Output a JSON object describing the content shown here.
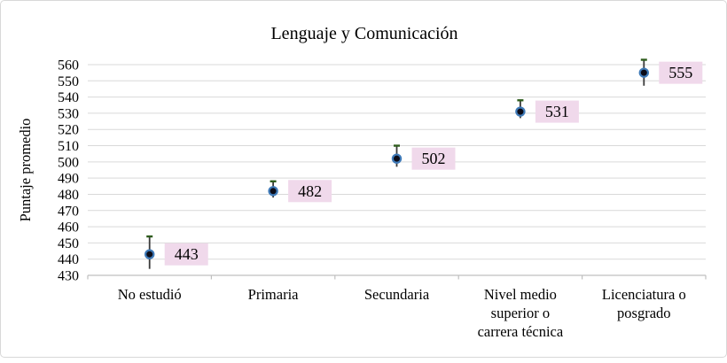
{
  "chart_data": {
    "type": "scatter",
    "title": "Lenguaje y Comunicación",
    "xlabel": "",
    "ylabel": "Puntaje promedio",
    "categories": [
      "No estudió",
      "Primaria",
      "Secundaria",
      "Nivel medio superior o carrera técnica",
      "Licenciatura o posgrado"
    ],
    "values": [
      443,
      482,
      502,
      531,
      555
    ],
    "data_labels": [
      "443",
      "482",
      "502",
      "531",
      "555"
    ],
    "error_low": [
      434,
      478,
      497,
      527,
      547
    ],
    "error_high": [
      454,
      488,
      510,
      538,
      563
    ],
    "ylim": [
      430,
      560
    ],
    "yticks": [
      430,
      440,
      450,
      460,
      470,
      480,
      490,
      500,
      510,
      520,
      530,
      540,
      550,
      560
    ],
    "grid": true,
    "legend": false
  },
  "style": {
    "grid_color": "#d9d9d9",
    "axis_color": "#bfbfbf",
    "error_color": "#3b3b3b",
    "cap_color": "#2f5d1d",
    "marker_fill": "#0c0c18",
    "marker_ring": "#3f7ab8",
    "label_bg": "#f0d9eb",
    "text_color": "#000000"
  }
}
